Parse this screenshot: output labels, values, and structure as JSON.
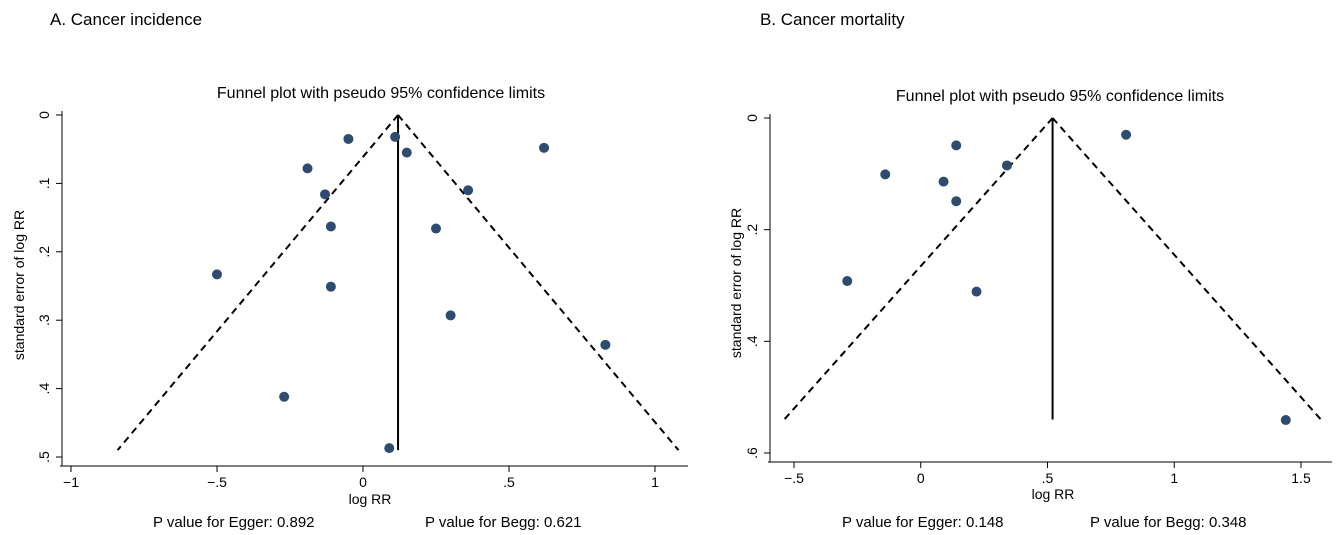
{
  "panels": {
    "a": {
      "label": "A. Cancer incidence",
      "egger": "P value for Egger: 0.892",
      "begg": "P value for Begg: 0.621"
    },
    "b": {
      "label": "B. Cancer mortality",
      "egger": "P value for Egger: 0.148",
      "begg": "P value for Begg: 0.348"
    }
  },
  "colors": {
    "points": "#2f4b6e",
    "lines": "#000000"
  },
  "chart_data": [
    {
      "type": "scatter",
      "title": "Funnel plot with pseudo 95% confidence limits",
      "xlabel": "log RR",
      "ylabel": "standard error of log RR",
      "xlim": [
        -1.0,
        1.1
      ],
      "ylim": [
        0,
        0.5
      ],
      "y_reversed": true,
      "xticks": [
        -1,
        -0.5,
        0,
        0.5,
        1
      ],
      "xtick_labels": [
        "−1",
        "−.5",
        "0",
        ".5",
        "1"
      ],
      "yticks": [
        0,
        0.1,
        0.2,
        0.3,
        0.4,
        0.5
      ],
      "ytick_labels": [
        "0",
        ".1",
        ".2",
        ".3",
        ".4",
        ".5"
      ],
      "pooled_estimate": 0.12,
      "funnel_max_se": 0.49,
      "points": [
        {
          "x": -0.05,
          "y": 0.035
        },
        {
          "x": 0.11,
          "y": 0.032
        },
        {
          "x": 0.15,
          "y": 0.055
        },
        {
          "x": 0.62,
          "y": 0.048
        },
        {
          "x": -0.19,
          "y": 0.078
        },
        {
          "x": -0.13,
          "y": 0.116
        },
        {
          "x": 0.36,
          "y": 0.11
        },
        {
          "x": -0.11,
          "y": 0.163
        },
        {
          "x": 0.25,
          "y": 0.166
        },
        {
          "x": -0.5,
          "y": 0.233
        },
        {
          "x": -0.11,
          "y": 0.251
        },
        {
          "x": 0.3,
          "y": 0.293
        },
        {
          "x": 0.83,
          "y": 0.336
        },
        {
          "x": -0.27,
          "y": 0.412
        },
        {
          "x": 0.09,
          "y": 0.487
        }
      ]
    },
    {
      "type": "scatter",
      "title": "Funnel plot with pseudo 95% confidence limits",
      "xlabel": "log RR",
      "ylabel": "standard error of log RR",
      "xlim": [
        -0.55,
        1.6
      ],
      "ylim": [
        0,
        0.6
      ],
      "y_reversed": true,
      "xticks": [
        -0.5,
        0,
        0.5,
        1,
        1.5
      ],
      "xtick_labels": [
        "−.5",
        "0",
        ".5",
        "1",
        "1.5"
      ],
      "yticks": [
        0,
        0.2,
        0.4,
        0.6
      ],
      "ytick_labels": [
        "0",
        ".2",
        ".4",
        ".6"
      ],
      "pooled_estimate": 0.52,
      "funnel_max_se": 0.54,
      "points": [
        {
          "x": 0.81,
          "y": 0.03
        },
        {
          "x": 0.14,
          "y": 0.049
        },
        {
          "x": 0.34,
          "y": 0.085
        },
        {
          "x": -0.14,
          "y": 0.101
        },
        {
          "x": 0.09,
          "y": 0.114
        },
        {
          "x": 0.14,
          "y": 0.149
        },
        {
          "x": -0.29,
          "y": 0.292
        },
        {
          "x": 0.22,
          "y": 0.311
        },
        {
          "x": 1.44,
          "y": 0.541
        }
      ]
    }
  ]
}
